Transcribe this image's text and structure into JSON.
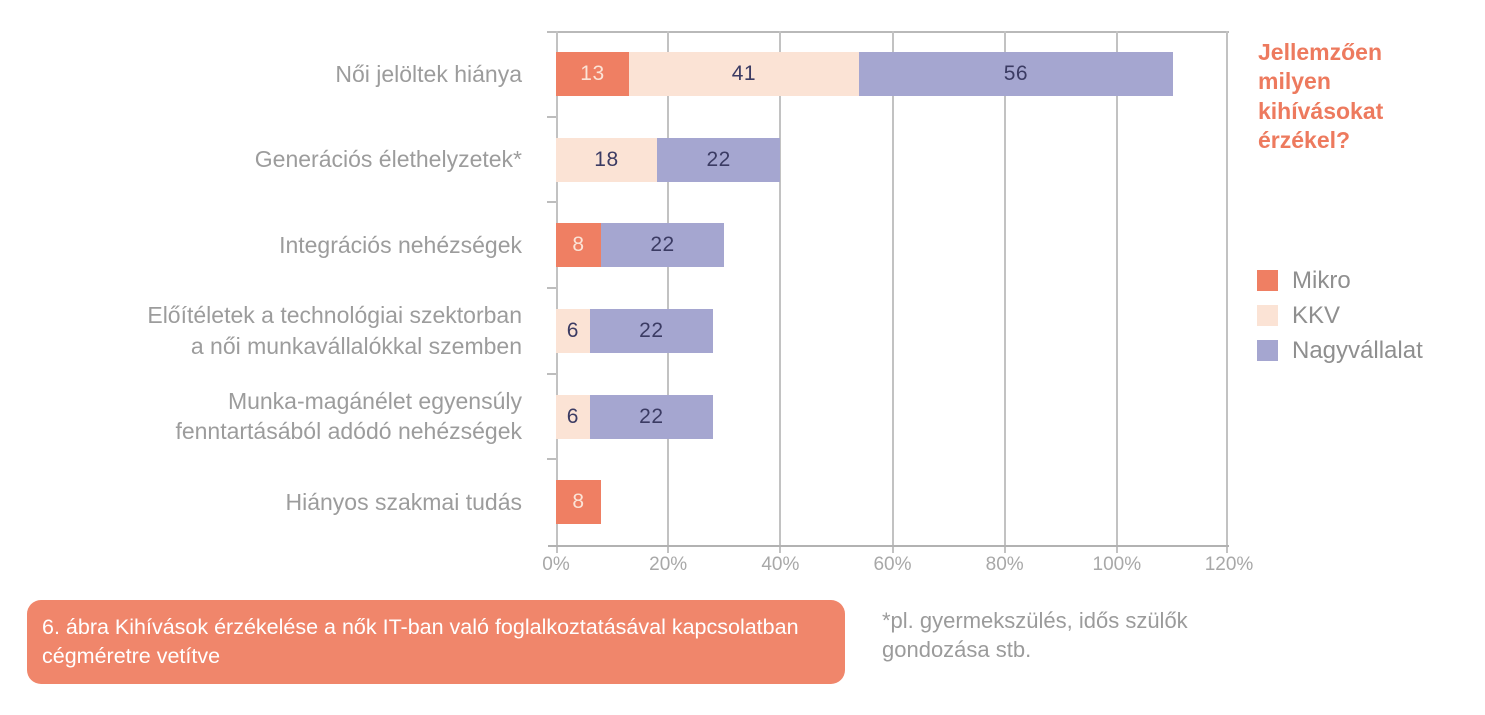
{
  "title": "Jellemzően milyen kihívásokat érzékel?",
  "caption": "6. ábra Kihívások érzékelése a nők IT-ban való foglalkoztatásával kapcsolatban cégméretre vetítve",
  "footnote": "*pl. gyermekszülés, idős szülők gondozása stb.",
  "colors": {
    "accent_orange": "#ed7a5e",
    "caption_bg": "#f0866b",
    "caption_text": "#ffffff",
    "grid": "#c2c2c2",
    "axis": "#b2b2b2",
    "category_text": "#9c9c9c",
    "tick_text": "#a8a8a8",
    "legend_text": "#8f8f8f",
    "value_on_mikro": "#fbe4d7",
    "value_dark": "#3b3b63"
  },
  "chart_data": {
    "type": "bar",
    "orientation": "horizontal",
    "stacked": true,
    "title": "Jellemzően milyen kihívásokat érzékel?",
    "categories": [
      [
        "Női jelöltek hiánya"
      ],
      [
        "Generációs élethelyzetek*"
      ],
      [
        "Integrációs nehézségek"
      ],
      [
        "Előítéletek a technológiai szektorban",
        "a női munkavállalókkal szemben"
      ],
      [
        "Munka-magánélet egyensúly",
        "fenntartásából adódó nehézségek"
      ],
      [
        "Hiányos szakmai tudás"
      ]
    ],
    "series": [
      {
        "name": "Mikro",
        "color": "#ef7f63",
        "values": [
          13,
          0,
          8,
          0,
          0,
          8
        ]
      },
      {
        "name": "KKV",
        "color": "#fbe3d5",
        "values": [
          41,
          18,
          0,
          6,
          6,
          0
        ]
      },
      {
        "name": "Nagyvállalat",
        "color": "#a5a6d0",
        "values": [
          56,
          22,
          22,
          22,
          22,
          0
        ]
      }
    ],
    "x_ticks": [
      "0%",
      "20%",
      "40%",
      "60%",
      "80%",
      "100%",
      "120%"
    ],
    "xlim": [
      0,
      120
    ],
    "grid": true,
    "value_labels": true,
    "legend_position": "right"
  },
  "legend": {
    "items": [
      {
        "label": "Mikro",
        "color": "#ef7f63"
      },
      {
        "label": "KKV",
        "color": "#fbe3d5"
      },
      {
        "label": "Nagyvállalat",
        "color": "#a5a6d0"
      }
    ]
  }
}
